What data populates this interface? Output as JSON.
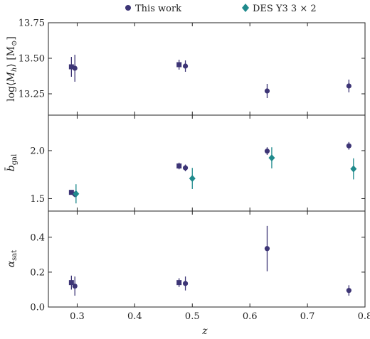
{
  "colors": {
    "this_work": "#3d3576",
    "des": "#1f8a8c"
  },
  "legend": [
    {
      "label": "This work",
      "marker": "circle",
      "color": "#3d3576"
    },
    {
      "label": "DES Y3 3 × 2",
      "marker": "diamond",
      "color": "#1f8a8c"
    }
  ],
  "chart_data": {
    "type": "scatter",
    "layout": "three stacked panels sharing x axis",
    "legend_placement": "top-center",
    "grid": false,
    "xlabel": "z",
    "xlim": [
      0.25,
      0.8
    ],
    "xticks": [
      0.3,
      0.4,
      0.5,
      0.6,
      0.7,
      0.8
    ],
    "panels": [
      {
        "ylabel": "log⟨M_h⟩ [M⊙]",
        "ylim": [
          13.1,
          13.75
        ],
        "yticks": [
          13.25,
          13.5,
          13.75
        ],
        "series": [
          {
            "name": "This work",
            "marker": "square",
            "points": [
              {
                "x": 0.29,
                "y": 13.44,
                "err": 0.07
              },
              {
                "x": 0.477,
                "y": 13.455,
                "err": 0.035
              }
            ]
          },
          {
            "name": "This work",
            "marker": "circle",
            "points": [
              {
                "x": 0.296,
                "y": 13.43,
                "err": 0.095
              },
              {
                "x": 0.488,
                "y": 13.445,
                "err": 0.04
              },
              {
                "x": 0.63,
                "y": 13.27,
                "err": 0.05
              },
              {
                "x": 0.772,
                "y": 13.305,
                "err": 0.045
              }
            ]
          }
        ]
      },
      {
        "ylabel": "b̄_gal",
        "ylim": [
          1.37,
          2.37
        ],
        "yticks": [
          1.5,
          2.0
        ],
        "series": [
          {
            "name": "This work",
            "marker": "square",
            "points": [
              {
                "x": 0.29,
                "y": 1.565,
                "err": 0.02
              },
              {
                "x": 0.477,
                "y": 1.84,
                "err": 0.035
              }
            ]
          },
          {
            "name": "This work",
            "marker": "circle",
            "points": [
              {
                "x": 0.296,
                "y": 1.545,
                "err": 0.03
              },
              {
                "x": 0.488,
                "y": 1.82,
                "err": 0.035
              },
              {
                "x": 0.63,
                "y": 1.995,
                "err": 0.04
              },
              {
                "x": 0.772,
                "y": 2.05,
                "err": 0.04
              }
            ]
          },
          {
            "name": "DES Y3 3 × 2",
            "marker": "diamond",
            "points": [
              {
                "x": 0.298,
                "y": 1.55,
                "err": 0.1
              },
              {
                "x": 0.5,
                "y": 1.71,
                "err": 0.11
              },
              {
                "x": 0.638,
                "y": 1.925,
                "err": 0.11
              },
              {
                "x": 0.78,
                "y": 1.81,
                "err": 0.11
              }
            ]
          }
        ]
      },
      {
        "ylabel": "α_sat",
        "ylim": [
          0.0,
          0.55
        ],
        "yticks": [
          0.0,
          0.2,
          0.4
        ],
        "series": [
          {
            "name": "This work",
            "marker": "square",
            "points": [
              {
                "x": 0.29,
                "y": 0.14,
                "err": 0.04
              },
              {
                "x": 0.477,
                "y": 0.14,
                "err": 0.025
              }
            ]
          },
          {
            "name": "This work",
            "marker": "circle",
            "points": [
              {
                "x": 0.296,
                "y": 0.12,
                "err": 0.055
              },
              {
                "x": 0.488,
                "y": 0.135,
                "err": 0.04
              },
              {
                "x": 0.63,
                "y": 0.335,
                "err": 0.13
              },
              {
                "x": 0.772,
                "y": 0.095,
                "err": 0.03
              }
            ]
          }
        ]
      }
    ]
  }
}
